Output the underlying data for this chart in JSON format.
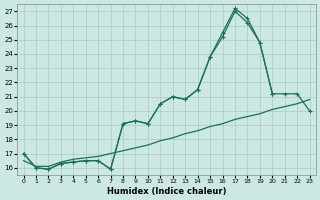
{
  "xlabel": "Humidex (Indice chaleur)",
  "bg_color": "#cce8e2",
  "grid_color": "#aaccbe",
  "line_color": "#1a7060",
  "xlim": [
    -0.5,
    23.5
  ],
  "ylim": [
    15.5,
    27.5
  ],
  "xticks": [
    0,
    1,
    2,
    3,
    4,
    5,
    6,
    7,
    8,
    9,
    10,
    11,
    12,
    13,
    14,
    15,
    16,
    17,
    18,
    19,
    20,
    21,
    22,
    23
  ],
  "yticks": [
    16,
    17,
    18,
    19,
    20,
    21,
    22,
    23,
    24,
    25,
    26,
    27
  ],
  "line1_x": [
    0,
    1,
    2,
    3,
    4,
    5,
    6,
    7,
    8,
    9,
    10,
    11,
    12,
    13,
    14,
    15,
    16,
    17,
    18,
    19,
    20
  ],
  "line1_y": [
    17.0,
    16.0,
    15.9,
    16.3,
    16.4,
    16.5,
    16.5,
    15.9,
    19.1,
    19.3,
    19.1,
    20.5,
    21.0,
    20.8,
    21.5,
    23.8,
    25.2,
    27.0,
    26.2,
    24.8,
    21.2
  ],
  "line2_x": [
    0,
    1,
    2,
    3,
    4,
    5,
    6,
    7,
    8,
    9,
    10,
    11,
    12,
    13,
    14,
    15,
    16,
    17,
    18,
    19,
    20,
    21,
    22,
    23
  ],
  "line2_y": [
    17.0,
    16.0,
    15.9,
    16.3,
    16.4,
    16.5,
    16.5,
    15.9,
    19.1,
    19.3,
    19.1,
    20.5,
    21.0,
    20.8,
    21.5,
    23.8,
    25.5,
    27.2,
    26.5,
    24.8,
    21.2,
    21.2,
    21.2,
    20.0
  ],
  "line3_x": [
    0,
    1,
    2,
    3,
    4,
    5,
    6,
    7,
    8,
    9,
    10,
    11,
    12,
    13,
    14,
    15,
    16,
    17,
    18,
    19,
    20,
    21,
    22,
    23
  ],
  "line3_y": [
    16.5,
    16.1,
    16.1,
    16.4,
    16.6,
    16.7,
    16.8,
    17.0,
    17.2,
    17.4,
    17.6,
    17.9,
    18.1,
    18.4,
    18.6,
    18.9,
    19.1,
    19.4,
    19.6,
    19.8,
    20.1,
    20.3,
    20.5,
    20.8
  ]
}
